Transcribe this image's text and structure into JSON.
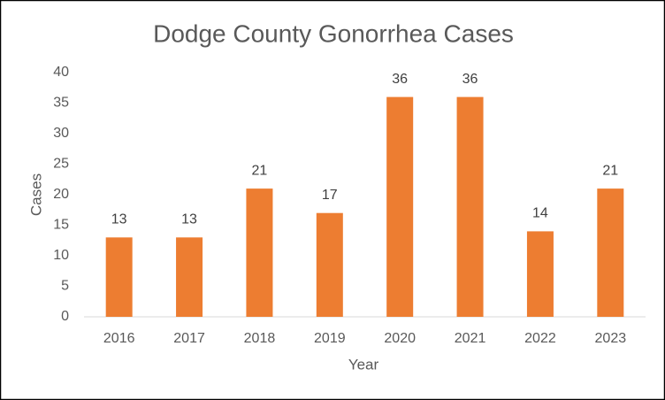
{
  "chart_data": {
    "type": "bar",
    "title": "Dodge County Gonorrhea Cases",
    "x_label": "Year",
    "y_label": "Cases",
    "categories": [
      "2016",
      "2017",
      "2018",
      "2019",
      "2020",
      "2021",
      "2022",
      "2023"
    ],
    "values": [
      13,
      13,
      21,
      17,
      36,
      36,
      14,
      21
    ],
    "color": "#ed7d31",
    "ylim": [
      0,
      40
    ],
    "yticks": [
      0,
      5,
      10,
      15,
      20,
      25,
      30,
      35,
      40
    ],
    "grid": false
  }
}
